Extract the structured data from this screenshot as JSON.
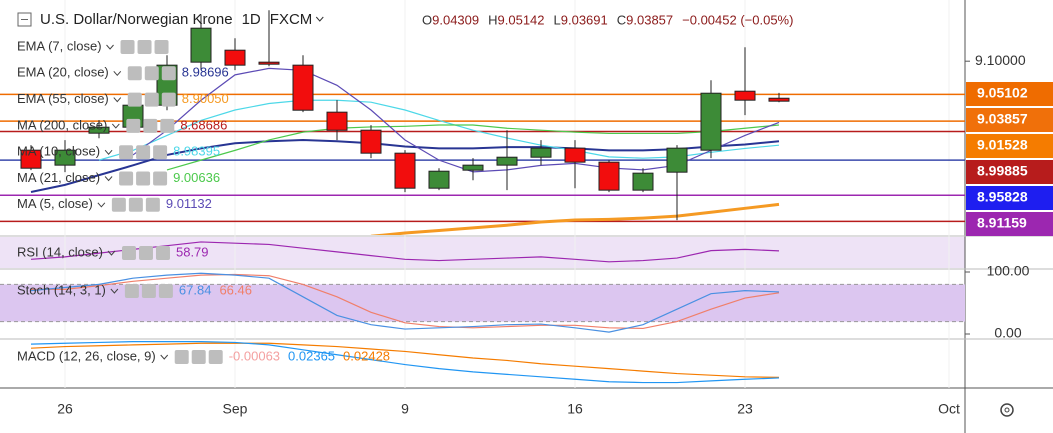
{
  "chart_data": {
    "type": "candlestick",
    "title": "U.S. Dollar/Norwegian Krone",
    "interval": "1D",
    "source": "FXCM",
    "ohlc_labels": [
      "O",
      "H",
      "L",
      "C"
    ],
    "change": "−0.00452 (−0.05%)",
    "x_labels": [
      {
        "value": 1,
        "label": "26"
      },
      {
        "value": 6,
        "label": "Sep"
      },
      {
        "value": 11,
        "label": "9"
      },
      {
        "value": 16,
        "label": "16"
      },
      {
        "value": 21,
        "label": "23"
      },
      {
        "value": 27,
        "label": "Oct"
      }
    ],
    "open": [
      8.9633,
      8.9403,
      8.9894,
      8.9986,
      9.0324,
      9.0985,
      9.1169,
      9.0985,
      9.0939,
      9.0217,
      8.994,
      8.9587,
      8.9049,
      8.9326,
      8.9403,
      8.9525,
      8.9664,
      8.9449,
      8.9019,
      8.9295,
      8.9633,
      9.0539,
      9.04309
    ],
    "high": [
      8.971,
      8.9787,
      9.0094,
      9.0432,
      9.1092,
      9.1707,
      9.1353,
      9.1783,
      9.1092,
      9.0401,
      9.0017,
      8.9633,
      8.9356,
      8.951,
      8.994,
      8.9787,
      8.9787,
      8.9479,
      8.9356,
      8.971,
      9.0708,
      9.1215,
      9.05142
    ],
    "low": [
      8.9326,
      8.9295,
      8.9817,
      8.994,
      9.0247,
      9.0862,
      9.0862,
      9.0923,
      9.0217,
      8.9787,
      8.951,
      8.8988,
      8.9019,
      8.9172,
      8.9019,
      8.9403,
      8.9049,
      8.8988,
      8.8988,
      8.8558,
      8.951,
      9.0171,
      9.03691
    ],
    "close": [
      8.9356,
      8.9633,
      8.9986,
      9.0324,
      9.0939,
      9.1507,
      9.0939,
      9.0954,
      9.0247,
      8.994,
      8.9587,
      8.9049,
      8.931,
      8.9403,
      8.9525,
      8.9664,
      8.9449,
      8.9019,
      8.928,
      8.9664,
      9.0508,
      9.0401,
      9.03857
    ],
    "up_color": "#3d8b37",
    "down_color": "#f20d0d",
    "ylim": [
      8.833,
      9.194
    ],
    "yticks": [
      {
        "value": 9.1,
        "label": "9.10000"
      }
    ],
    "indicators": [
      {
        "name": "EMA (7, close)",
        "color": "#9aa0a6"
      },
      {
        "name": "EMA (20, close)",
        "value": "8.98696",
        "color": "#283593",
        "values": [
          8.899,
          8.91,
          8.925,
          8.94,
          8.956,
          8.966,
          8.974,
          8.977,
          8.979,
          8.977,
          8.974,
          8.969,
          8.966,
          8.966,
          8.968,
          8.968,
          8.966,
          8.963,
          8.963,
          8.965,
          8.969,
          8.972,
          8.977
        ]
      },
      {
        "name": "EMA (55, close)",
        "value": "8.90050",
        "color": "#f59a23",
        "values": [
          null,
          null,
          null,
          null,
          null,
          null,
          null,
          null,
          null,
          null,
          8.831,
          8.836,
          8.84,
          8.844,
          8.848,
          8.853,
          8.856,
          8.857,
          8.859,
          8.862,
          8.868,
          8.874,
          8.88
        ]
      },
      {
        "name": "MA (200, close)",
        "value": "8.68686",
        "color": "#b71c1c"
      },
      {
        "name": "MA (10, close)",
        "value": "8.98395",
        "color": "#4dd8e8",
        "values": [
          null,
          null,
          8.948,
          8.963,
          8.986,
          9.009,
          9.025,
          9.035,
          9.04,
          9.04,
          9.037,
          9.025,
          9.009,
          8.994,
          8.982,
          8.971,
          8.963,
          8.953,
          8.951,
          8.953,
          8.96,
          8.966,
          8.971
        ]
      },
      {
        "name": "MA (21, close)",
        "value": "9.00636",
        "color": "#4cc94c",
        "values": [
          null,
          null,
          null,
          null,
          8.933,
          8.948,
          8.963,
          8.979,
          8.991,
          8.997,
          8.999,
          9.0,
          9.002,
          9.002,
          8.997,
          8.994,
          8.991,
          8.989,
          8.989,
          8.989,
          8.992,
          8.997,
          9.002
        ]
      },
      {
        "name": "MA (5, close)",
        "value": "9.01132",
        "color": "#5c4bb5",
        "values": [
          null,
          null,
          null,
          8.956,
          8.994,
          9.04,
          9.079,
          9.089,
          9.086,
          9.063,
          9.025,
          8.979,
          8.948,
          8.93,
          8.933,
          8.94,
          8.943,
          8.936,
          8.933,
          8.94,
          8.963,
          8.986,
          9.006
        ]
      }
    ],
    "price_lines": [
      {
        "value": 9.049,
        "color": "#ef6c00"
      },
      {
        "value": 9.008,
        "color": "#ef6c00"
      },
      {
        "value": 8.992,
        "color": "#b71c1c"
      },
      {
        "value": 8.948,
        "color": "#3949ab"
      },
      {
        "value": 8.894,
        "color": "#9c27b0"
      },
      {
        "value": 8.854,
        "color": "#b71c1c"
      }
    ],
    "price_badges": [
      {
        "label": "9.05102",
        "color": "#ef6c00"
      },
      {
        "label": "9.03857",
        "color": "#f0700a"
      },
      {
        "label": "9.01528",
        "color": "#f57c00"
      },
      {
        "label": "8.99885",
        "color": "#b71c1c"
      },
      {
        "label": "8.95828",
        "color": "#1e1ef0"
      },
      {
        "label": "8.91159",
        "color": "#9c27b0"
      }
    ],
    "rsi": {
      "name": "RSI (14, close)",
      "color": "#9c27b0",
      "ylim": [
        45,
        70
      ],
      "values": [
        52,
        54,
        57,
        60,
        63,
        66,
        65,
        64,
        61,
        58,
        55,
        52,
        51,
        52,
        53,
        54,
        52,
        50,
        51,
        53,
        59,
        60,
        58.79
      ]
    },
    "stoch": {
      "name": "Stoch (14, 3, 1)",
      "ylim": [
        0,
        100
      ],
      "band": [
        20,
        80
      ],
      "yticks": [
        {
          "value": 100,
          "label": "100.00"
        },
        {
          "value": 0,
          "label": "0.00"
        }
      ],
      "k": {
        "color": "#4a90e2",
        "values": [
          70,
          75,
          80,
          90,
          95,
          98,
          95,
          90,
          60,
          30,
          15,
          8,
          10,
          12,
          15,
          16,
          10,
          3,
          15,
          40,
          65,
          70,
          67.84
        ]
      },
      "d": {
        "color": "#f07f6a",
        "values": [
          72,
          72,
          78,
          85,
          90,
          95,
          96,
          94,
          80,
          60,
          35,
          18,
          12,
          10,
          12,
          14,
          14,
          10,
          9,
          20,
          40,
          58,
          66.46
        ]
      }
    },
    "macd": {
      "name": "MACD (12, 26, close, 9)",
      "ylim": [
        0.015,
        0.07
      ],
      "histogram": -0.00063,
      "histogram_color": "#f4a0a0",
      "macd": {
        "color": "#2196f3",
        "values": [
          0.065,
          0.066,
          0.067,
          0.068,
          0.068,
          0.068,
          0.067,
          0.064,
          0.058,
          0.052,
          0.046,
          0.04,
          0.035,
          0.031,
          0.028,
          0.025,
          0.022,
          0.019,
          0.018,
          0.018,
          0.02,
          0.022,
          0.02365
        ]
      },
      "signal": {
        "color": "#f57c00",
        "values": [
          0.06,
          0.062,
          0.063,
          0.064,
          0.065,
          0.066,
          0.066,
          0.066,
          0.064,
          0.062,
          0.059,
          0.056,
          0.052,
          0.048,
          0.045,
          0.041,
          0.038,
          0.035,
          0.032,
          0.029,
          0.027,
          0.025,
          0.02428
        ]
      }
    }
  }
}
